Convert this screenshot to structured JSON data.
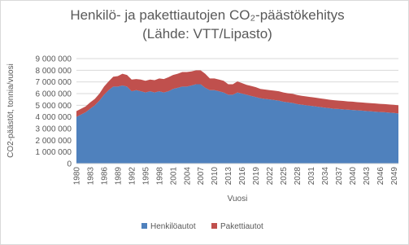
{
  "chart_data": {
    "type": "stacked-area",
    "title": "Henkilö- ja pakettiautojen CO₂-päästökehitys",
    "subtitle": "(Lähde: VTT/Lipasto)",
    "x_label": "Vuosi",
    "y_label": "CO2-päästöt, tonnia/vuosi",
    "x": [
      1980,
      1981,
      1982,
      1983,
      1984,
      1985,
      1986,
      1987,
      1988,
      1989,
      1990,
      1991,
      1992,
      1993,
      1994,
      1995,
      1996,
      1997,
      1998,
      1999,
      2000,
      2001,
      2002,
      2003,
      2004,
      2005,
      2006,
      2007,
      2008,
      2009,
      2010,
      2011,
      2012,
      2013,
      2014,
      2015,
      2016,
      2017,
      2018,
      2019,
      2020,
      2021,
      2022,
      2023,
      2024,
      2025,
      2026,
      2027,
      2028,
      2029,
      2030,
      2031,
      2032,
      2033,
      2034,
      2035,
      2036,
      2037,
      2038,
      2039,
      2040,
      2041,
      2042,
      2043,
      2044,
      2045,
      2046,
      2047,
      2048,
      2049,
      2050
    ],
    "xlim": [
      1980,
      2050
    ],
    "xticks": [
      1980,
      1983,
      1986,
      1989,
      1992,
      1995,
      1998,
      2001,
      2004,
      2007,
      2010,
      2013,
      2016,
      2019,
      2022,
      2025,
      2028,
      2031,
      2034,
      2037,
      2040,
      2043,
      2046,
      2049
    ],
    "ylim": [
      0,
      9000000
    ],
    "yticks": [
      0,
      {
        "value": 1000000,
        "label": "1 000 000"
      },
      {
        "value": 2000000,
        "label": "2 000 000"
      },
      {
        "value": 3000000,
        "label": "3 000 000"
      },
      {
        "value": 4000000,
        "label": "4 000 000"
      },
      {
        "value": 5000000,
        "label": "5 000 000"
      },
      {
        "value": 6000000,
        "label": "6 000 000"
      },
      {
        "value": 7000000,
        "label": "7 000 000"
      },
      {
        "value": 8000000,
        "label": "8 000 000"
      },
      {
        "value": 9000000,
        "label": "9 000 000"
      }
    ],
    "grid": true,
    "legend": "bottom",
    "series": [
      {
        "name": "Henkilöautot",
        "color": "#4f81bd",
        "values": [
          4000000,
          4200000,
          4400000,
          4700000,
          5000000,
          5400000,
          5900000,
          6300000,
          6600000,
          6600000,
          6700000,
          6600000,
          6200000,
          6300000,
          6200000,
          6100000,
          6200000,
          6100000,
          6200000,
          6100000,
          6200000,
          6400000,
          6500000,
          6600000,
          6600000,
          6700000,
          6800000,
          6800000,
          6500000,
          6300000,
          6300000,
          6200000,
          6100000,
          5900000,
          5900000,
          6100000,
          6000000,
          5900000,
          5800000,
          5700000,
          5600000,
          5550000,
          5500000,
          5450000,
          5400000,
          5300000,
          5250000,
          5200000,
          5100000,
          5050000,
          5000000,
          4950000,
          4900000,
          4850000,
          4800000,
          4750000,
          4700000,
          4680000,
          4650000,
          4620000,
          4600000,
          4570000,
          4540000,
          4510000,
          4480000,
          4450000,
          4420000,
          4400000,
          4370000,
          4340000,
          4300000
        ]
      },
      {
        "name": "Pakettiautot",
        "color": "#c0504d",
        "values": [
          500000,
          500000,
          500000,
          550000,
          550000,
          600000,
          700000,
          750000,
          850000,
          900000,
          1000000,
          1000000,
          1000000,
          950000,
          1000000,
          1000000,
          1000000,
          1050000,
          1100000,
          1150000,
          1200000,
          1200000,
          1200000,
          1250000,
          1250000,
          1200000,
          1200000,
          1200000,
          1200000,
          1000000,
          1000000,
          1000000,
          1000000,
          900000,
          900000,
          950000,
          900000,
          850000,
          850000,
          850000,
          800000,
          800000,
          800000,
          800000,
          800000,
          800000,
          780000,
          780000,
          780000,
          760000,
          760000,
          750000,
          750000,
          740000,
          740000,
          730000,
          730000,
          720000,
          720000,
          710000,
          710000,
          700000,
          700000,
          700000,
          700000,
          700000,
          700000,
          700000,
          700000,
          700000,
          700000
        ]
      }
    ]
  }
}
